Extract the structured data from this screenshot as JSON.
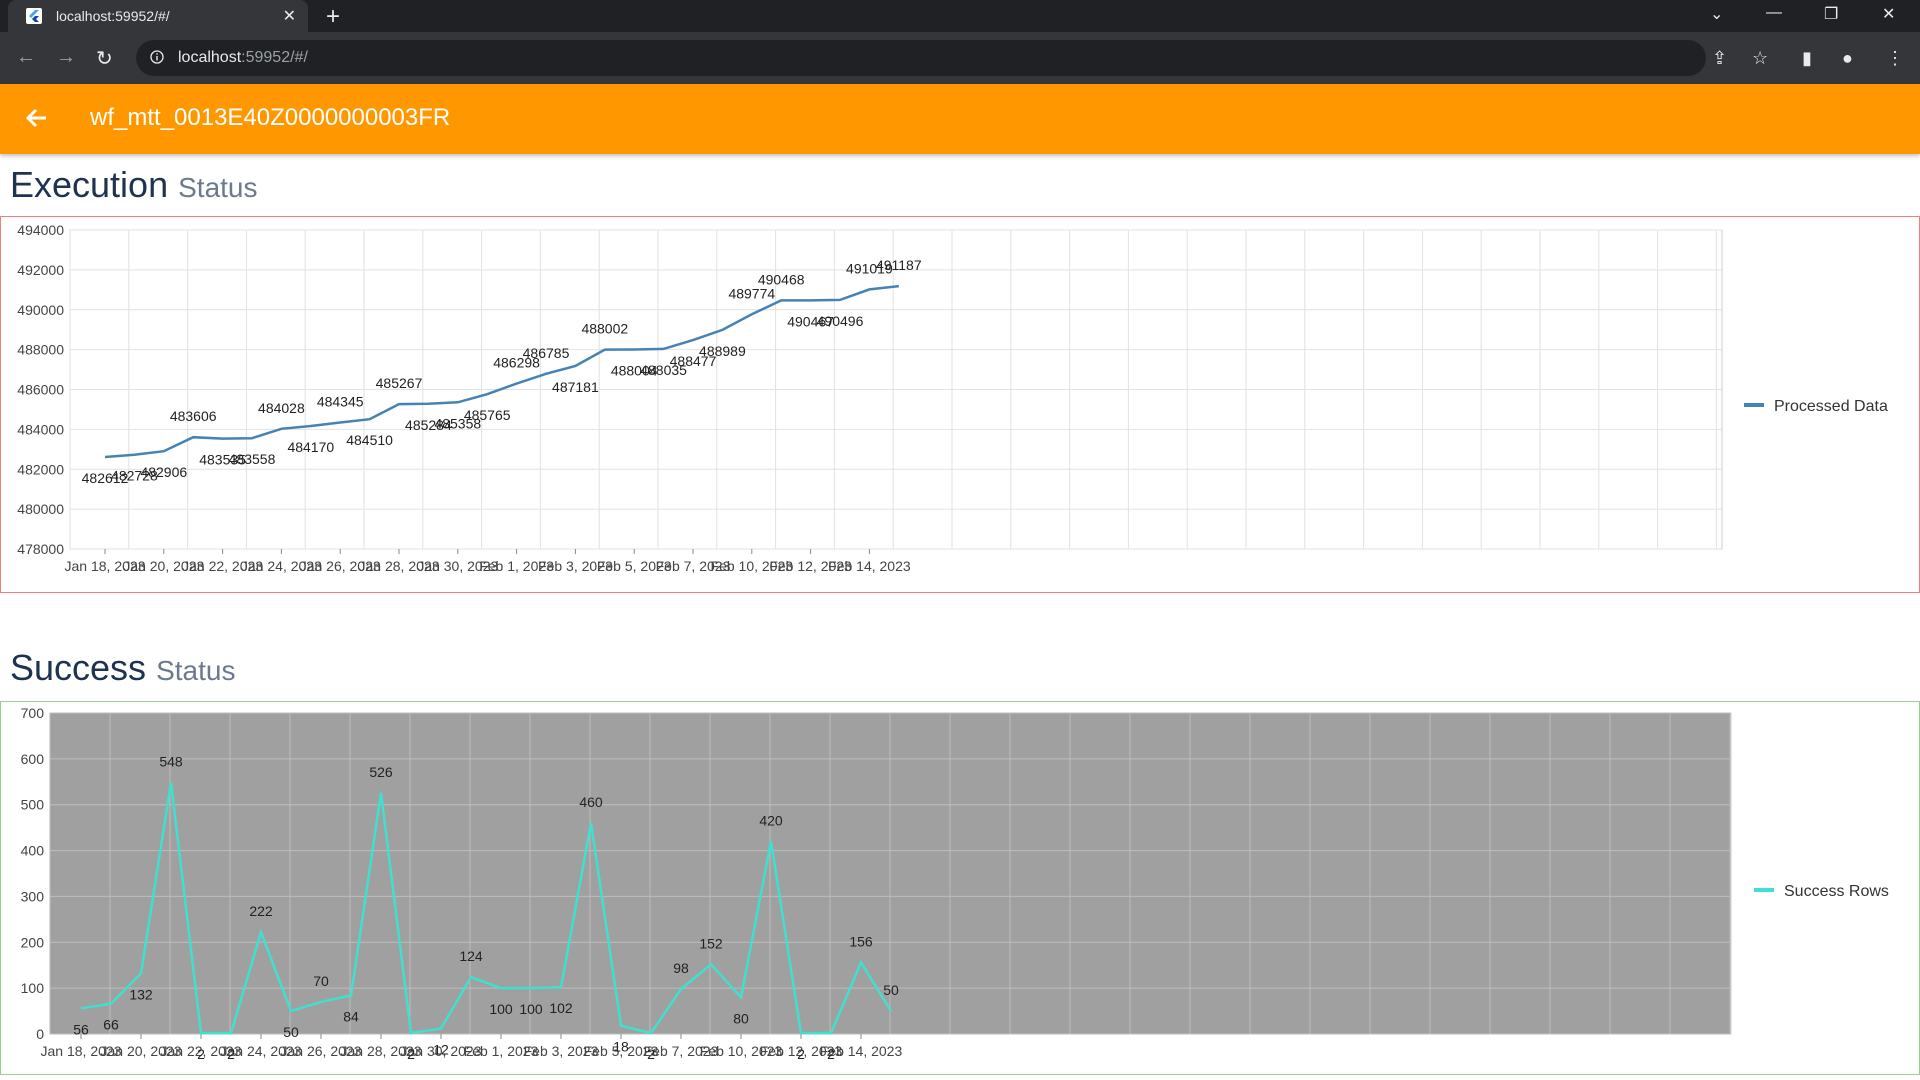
{
  "browser": {
    "tab_title": "localhost:59952/#/",
    "url_host": "localhost",
    "url_rest": ":59952/#/"
  },
  "appbar": {
    "title": "wf_mtt_0013E40Z0000000003FR"
  },
  "execution": {
    "title_main": "Execution",
    "title_sub": "Status"
  },
  "success": {
    "title_main": "Success",
    "title_sub": "Status"
  },
  "colors": {
    "appbar": "#ff9800",
    "processed_line": "#4682b4",
    "success_line": "#40e0d0",
    "success_plot_bg": "#a0a0a0",
    "execution_border": "#f08080",
    "success_border": "#90d890"
  },
  "chart_data": [
    {
      "type": "line",
      "x_tick_labels": [
        "Jan 18, 2023",
        "Jan 20, 2023",
        "Jan 22, 2023",
        "Jan 24, 2023",
        "Jan 26, 2023",
        "Jan 28, 2023",
        "Jan 30, 2023",
        "Feb 1, 2023",
        "Feb 3, 2023",
        "Feb 5, 2023",
        "Feb 7, 2023",
        "Feb 10, 2023",
        "Feb 12, 2023",
        "Feb 14, 2023"
      ],
      "y_ticks": [
        478000,
        480000,
        482000,
        484000,
        486000,
        488000,
        490000,
        492000,
        494000
      ],
      "ylim": [
        478000,
        494000
      ],
      "grid": true,
      "legend_position": "right",
      "series": [
        {
          "name": "Processed Data",
          "values": [
            482612,
            482728,
            482906,
            483606,
            483535,
            483558,
            484028,
            484170,
            484345,
            484510,
            485267,
            485284,
            485358,
            485765,
            486298,
            486785,
            487181,
            488002,
            488004,
            488035,
            488477,
            488989,
            489774,
            490468,
            490467,
            490496,
            491019,
            491187
          ]
        }
      ]
    },
    {
      "type": "line",
      "x_tick_labels": [
        "Jan 18, 2023",
        "Jan 20, 2023",
        "Jan 22, 2023",
        "Jan 24, 2023",
        "Jan 26, 2023",
        "Jan 28, 2023",
        "Jan 30, 2023",
        "Feb 1, 2023",
        "Feb 3, 2023",
        "Feb 5, 2023",
        "Feb 7, 2023",
        "Feb 10, 2023",
        "Feb 12, 2023",
        "Feb 14, 2023"
      ],
      "y_ticks": [
        0,
        100,
        200,
        300,
        400,
        500,
        600,
        700
      ],
      "ylim": [
        0,
        700
      ],
      "grid": true,
      "legend_position": "right",
      "series": [
        {
          "name": "Success Rows",
          "values": [
            56,
            66,
            132,
            548,
            2,
            2,
            222,
            50,
            70,
            84,
            526,
            2,
            12,
            124,
            100,
            100,
            102,
            460,
            18,
            2,
            98,
            152,
            80,
            420,
            2,
            2,
            156,
            50
          ]
        }
      ]
    }
  ]
}
